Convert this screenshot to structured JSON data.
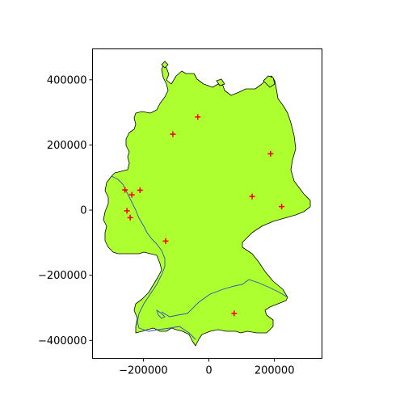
{
  "chart_data": {
    "type": "scatter",
    "title": "",
    "xlabel": "",
    "ylabel": "",
    "xlim": [
      -355000,
      345000
    ],
    "ylim": [
      -455000,
      495000
    ],
    "x_ticks": [
      -200000,
      0,
      200000
    ],
    "y_ticks": [
      -400000,
      -200000,
      0,
      200000,
      400000
    ],
    "x_tick_labels": [
      "−200000",
      "0",
      "200000"
    ],
    "y_tick_labels": [
      "−400000",
      "−200000",
      "0",
      "200000",
      "400000"
    ],
    "grid": false,
    "legend": "none",
    "land_color": "#adff2f",
    "border_color": "#000000",
    "river_color": "#2a4fbf",
    "marker_color": "#ff0000",
    "marker": "plus",
    "points": [
      {
        "x": -34000,
        "y": 286000
      },
      {
        "x": -110000,
        "y": 233000
      },
      {
        "x": 188000,
        "y": 173000
      },
      {
        "x": -256000,
        "y": 62000
      },
      {
        "x": -235000,
        "y": 47000
      },
      {
        "x": -210000,
        "y": 61000
      },
      {
        "x": 132000,
        "y": 42000
      },
      {
        "x": 222000,
        "y": 11000
      },
      {
        "x": -250000,
        "y": -2000
      },
      {
        "x": -240000,
        "y": -23000
      },
      {
        "x": -132000,
        "y": -95000
      },
      {
        "x": 77000,
        "y": -317000
      }
    ]
  }
}
